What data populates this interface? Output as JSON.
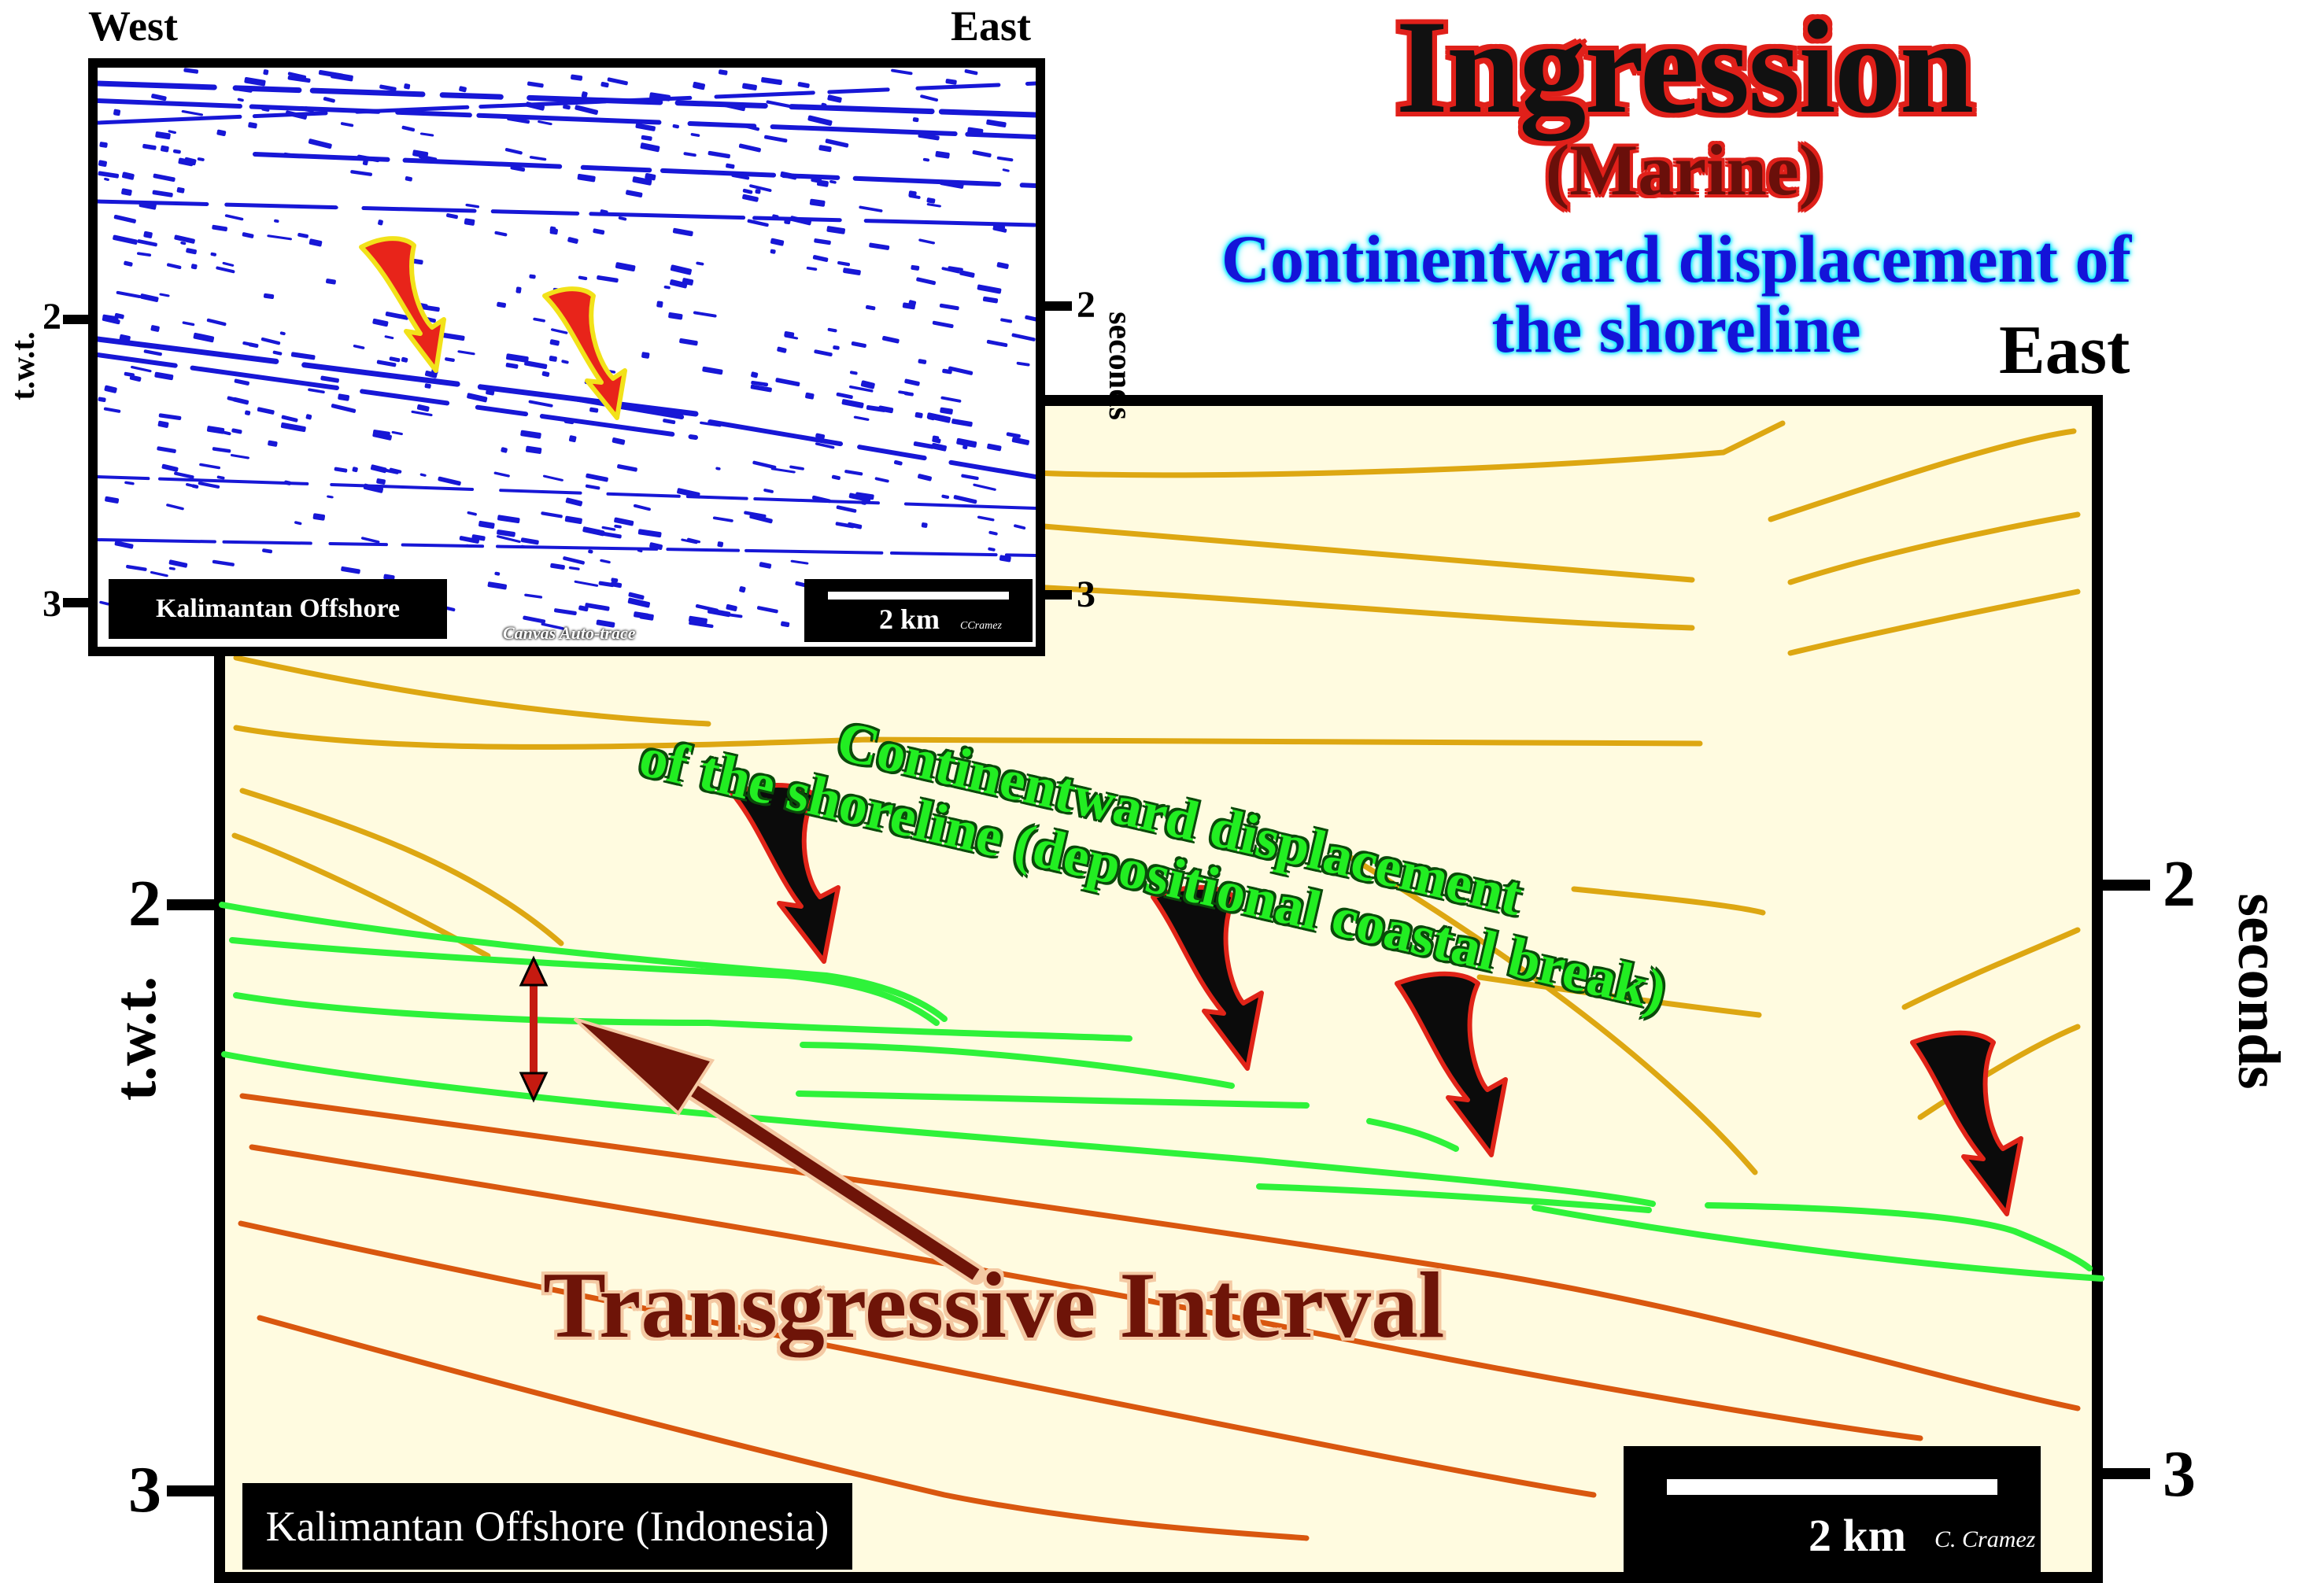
{
  "title": "Ingression",
  "subtitle": "(Marine)",
  "headline": [
    "Continentward displacement of",
    "the shoreline"
  ],
  "inset": {
    "west_label": "West",
    "east_label": "East",
    "left_axis": "t.w.t.",
    "right_axis": "seconds",
    "ticks_left": [
      "2",
      "3"
    ],
    "ticks_right": [
      "2",
      "3"
    ],
    "location": "Kalimantan Offshore",
    "scale": "2 km",
    "credit": "CCramez",
    "caption": "Canvas Auto-trace",
    "colors": {
      "reflector": "#1717d6",
      "arrow_fill": "#e8241a",
      "arrow_outline": "#f2e21a"
    }
  },
  "main": {
    "east_label": "East",
    "left_axis": "t.w.t.",
    "right_axis": "seconds",
    "ticks_left": [
      "2",
      "3"
    ],
    "ticks_right": [
      "2",
      "3"
    ],
    "location": "Kalimantan Offshore (Indonesia)",
    "scale": "2 km",
    "credit": "C. Cramez",
    "note": [
      "Continentward displacement",
      "of the shoreline (depositional coastal break)"
    ],
    "interval": "Transgressive Interval",
    "colors": {
      "background": "#fffbe0",
      "upper_reflectors": "#dda712",
      "transgressive_reflectors": "#2ef23a",
      "lower_reflectors": "#d9570f",
      "arrow_fill": "#0b0b0b",
      "arrow_outline": "#e02418",
      "pointer": "#6e1408"
    }
  }
}
